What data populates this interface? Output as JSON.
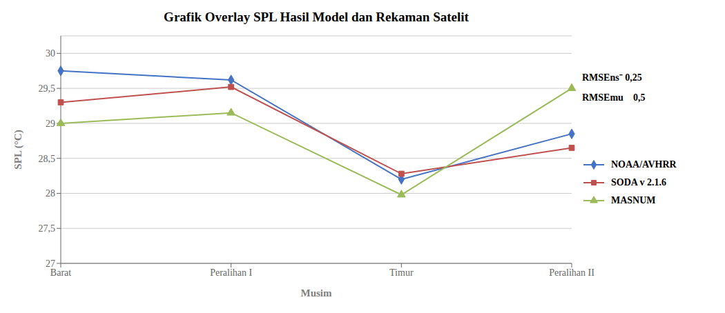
{
  "chart_data": {
    "type": "line",
    "title": "Grafik Overlay SPL Hasil Model dan Rekaman Satelit",
    "xlabel": "Musim",
    "ylabel": "SPL (°C)",
    "categories": [
      "Barat",
      "Peralihan I",
      "Timur",
      "Peralihan II"
    ],
    "series": [
      {
        "name": "NOAA/AVHRR",
        "color": "#4472C4",
        "marker": "diamond",
        "values": [
          29.75,
          29.62,
          28.2,
          28.85
        ]
      },
      {
        "name": "SODA v 2.1.6",
        "color": "#C0504D",
        "marker": "square",
        "values": [
          29.3,
          29.52,
          28.28,
          28.65
        ]
      },
      {
        "name": "MASNUM",
        "color": "#9BBB59",
        "marker": "triangle",
        "values": [
          29.0,
          29.15,
          27.98,
          29.5
        ]
      }
    ],
    "ylim": [
      27.0,
      30.25
    ],
    "yticks": [
      27,
      {
        "value": 27.5,
        "label": "27,5"
      },
      28,
      {
        "value": 28.5,
        "label": "28,5"
      },
      29,
      {
        "value": 29.5,
        "label": "29,5"
      },
      30
    ],
    "grid": true,
    "legend": "right",
    "annotations": [
      "RMSEns⁻ 0,25",
      "RMSEmu    0,5"
    ]
  }
}
